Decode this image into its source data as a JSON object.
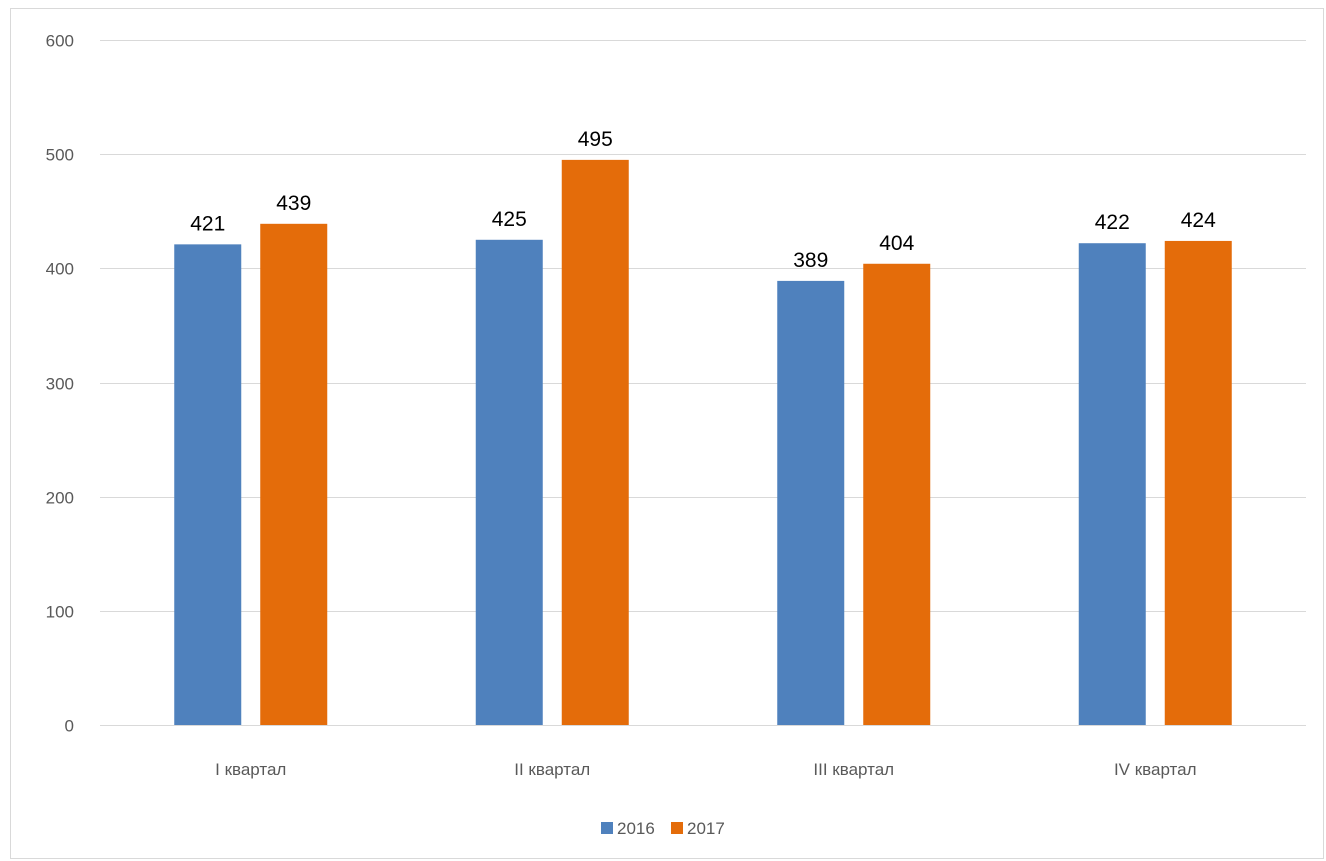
{
  "chart_data": {
    "type": "bar",
    "categories": [
      "I квартал",
      "II квартал",
      "III квартал",
      "IV квартал"
    ],
    "series": [
      {
        "name": "2016",
        "values": [
          421,
          425,
          389,
          422
        ],
        "color": "#4f81bd"
      },
      {
        "name": "2017",
        "values": [
          439,
          495,
          404,
          424
        ],
        "color": "#e46c0a"
      }
    ],
    "title": "",
    "xlabel": "",
    "ylabel": "",
    "ylim": [
      0,
      600
    ],
    "yticks": [
      0,
      100,
      200,
      300,
      400,
      500,
      600
    ],
    "grid": true,
    "gridline_color": "#d9d9d9",
    "legend_position": "bottom"
  }
}
